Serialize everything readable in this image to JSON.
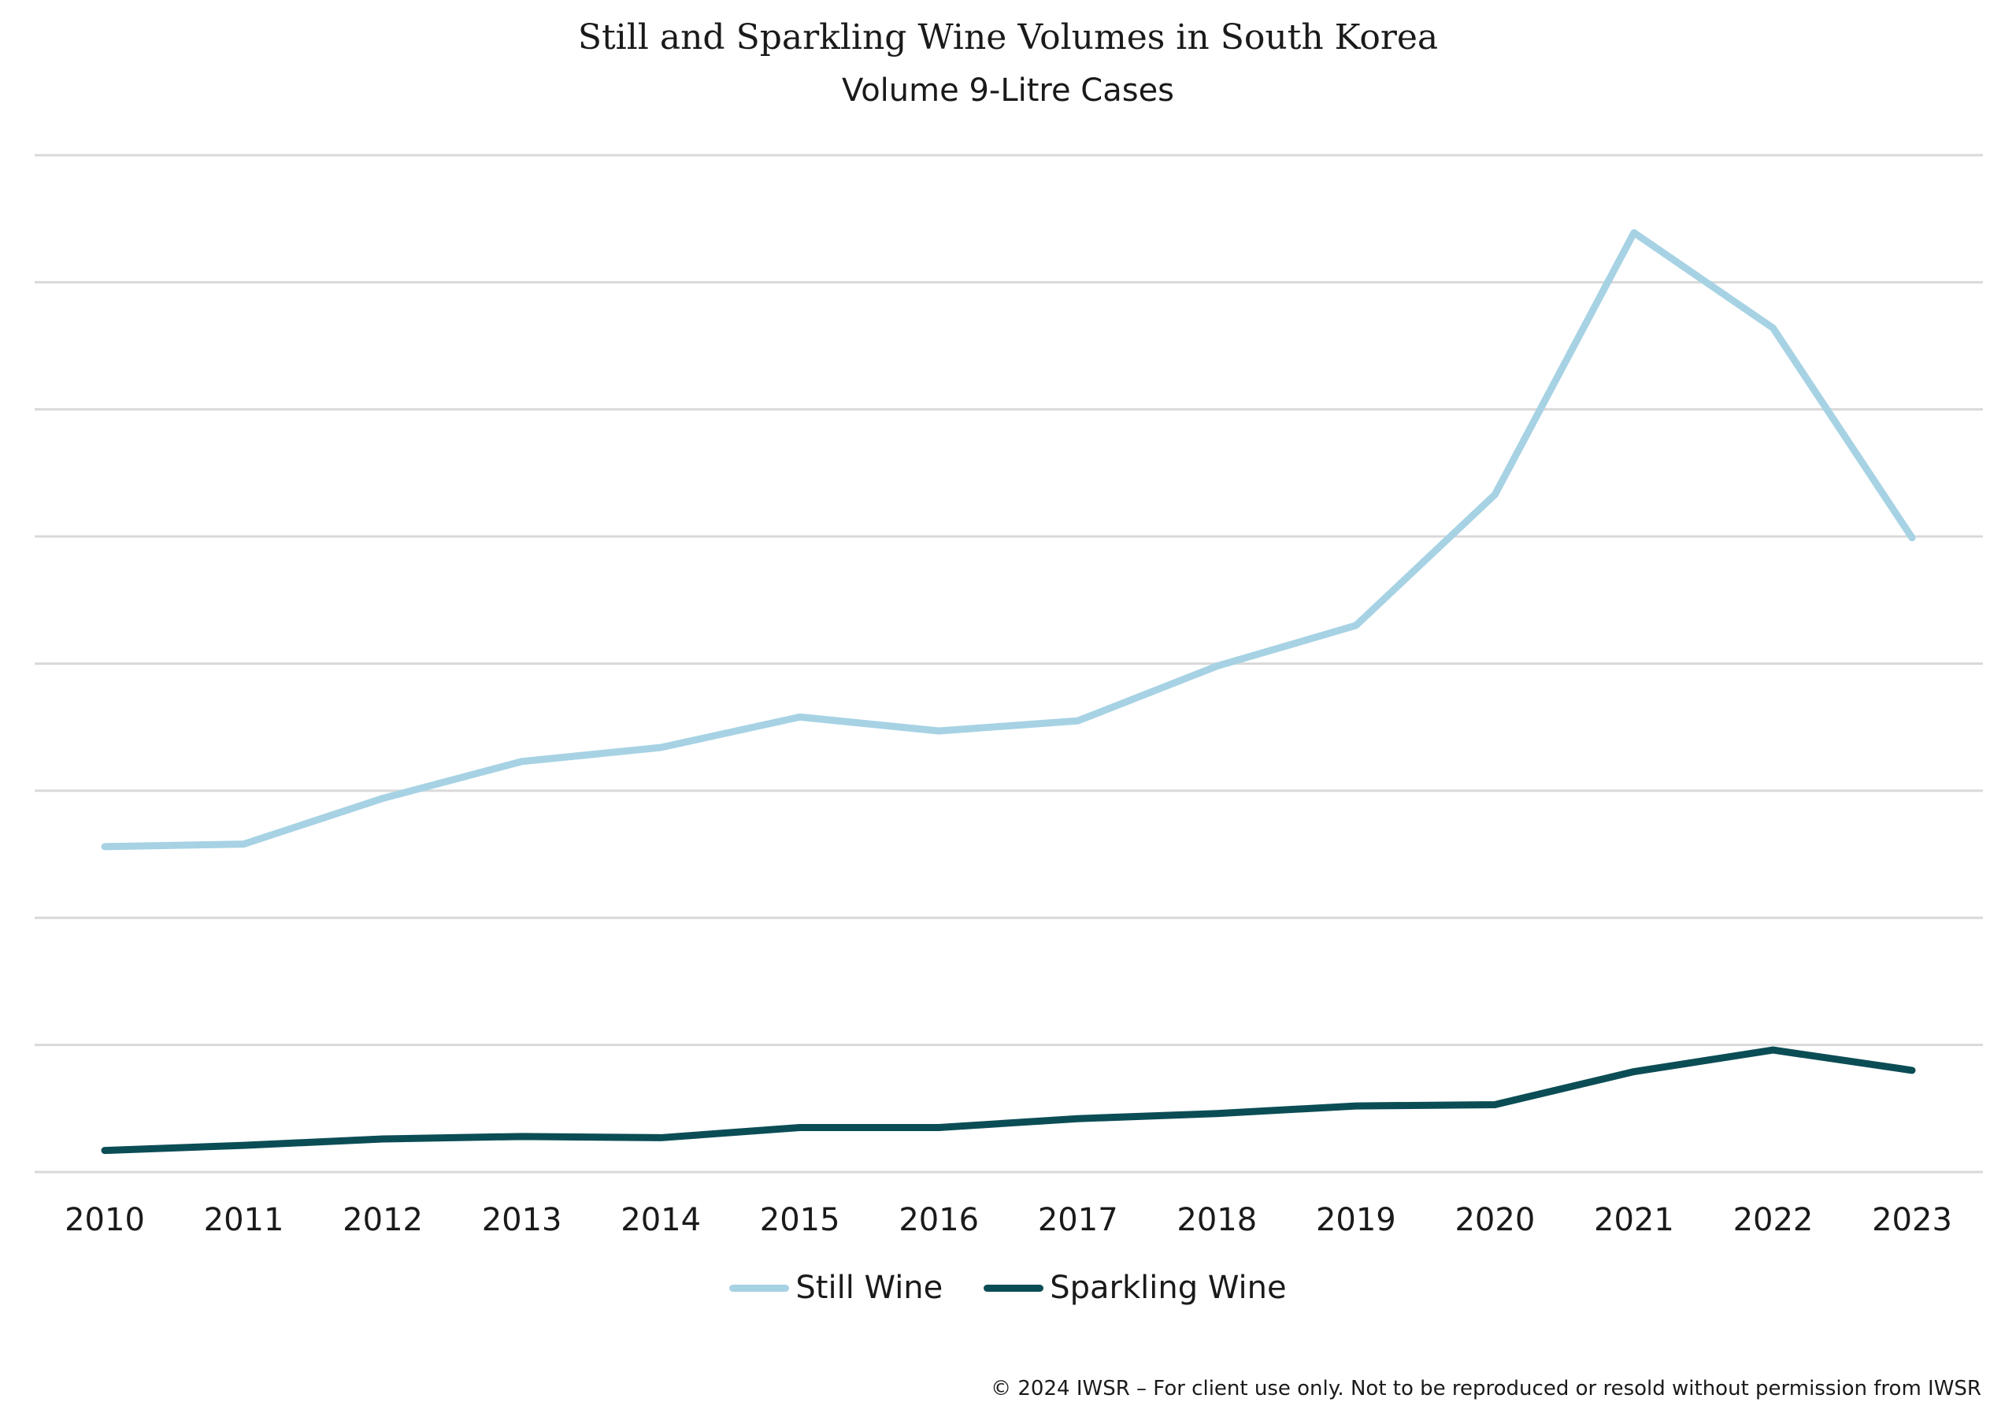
{
  "chart_data": {
    "type": "line",
    "title": "Still and Sparkling Wine Volumes in South Korea",
    "subtitle": "Volume 9-Litre Cases",
    "xlabel": "",
    "ylabel": "",
    "y_axis_labels_visible": false,
    "y_units_note": "Relative gridline units (y-axis tick labels not shown)",
    "ylim": [
      0,
      8
    ],
    "y_gridlines": [
      0,
      1,
      2,
      3,
      4,
      5,
      6,
      7,
      8
    ],
    "grid": true,
    "legend_position": "bottom-center",
    "categories": [
      "2010",
      "2011",
      "2012",
      "2013",
      "2014",
      "2015",
      "2016",
      "2017",
      "2018",
      "2019",
      "2020",
      "2021",
      "2022",
      "2023"
    ],
    "series": [
      {
        "name": "Still Wine",
        "color": "#a6d2e4",
        "values": [
          2.56,
          2.58,
          2.94,
          3.23,
          3.34,
          3.58,
          3.47,
          3.55,
          3.98,
          4.3,
          5.33,
          7.39,
          6.64,
          4.99
        ]
      },
      {
        "name": "Sparkling Wine",
        "color": "#0b4d55",
        "values": [
          0.17,
          0.21,
          0.26,
          0.28,
          0.27,
          0.35,
          0.35,
          0.42,
          0.46,
          0.52,
          0.53,
          0.79,
          0.96,
          0.8
        ]
      }
    ],
    "footer": "© 2024 IWSR – For client use only. Not to be reproduced or resold without permission from IWSR"
  }
}
